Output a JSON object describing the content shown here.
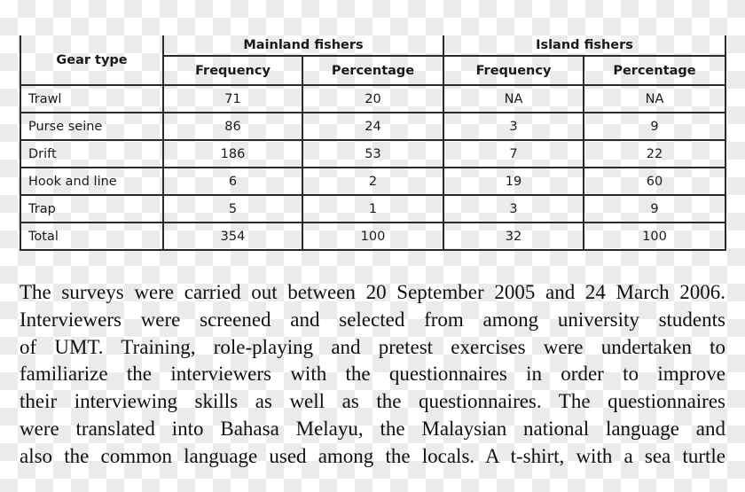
{
  "table": {
    "header": {
      "gear_type": "Gear type",
      "group_mainland": "Mainland fishers",
      "group_island": "Island fishers",
      "frequency": "Frequency",
      "percentage": "Percentage"
    },
    "rows": [
      {
        "gear": "Trawl",
        "m_freq": "71",
        "m_pct": "20",
        "i_freq": "NA",
        "i_pct": "NA"
      },
      {
        "gear": "Purse seine",
        "m_freq": "86",
        "m_pct": "24",
        "i_freq": "3",
        "i_pct": "9"
      },
      {
        "gear": "Drift",
        "m_freq": "186",
        "m_pct": "53",
        "i_freq": "7",
        "i_pct": "22"
      },
      {
        "gear": "Hook and line",
        "m_freq": "6",
        "m_pct": "2",
        "i_freq": "19",
        "i_pct": "60"
      },
      {
        "gear": "Trap",
        "m_freq": "5",
        "m_pct": "1",
        "i_freq": "3",
        "i_pct": "9"
      },
      {
        "gear": "Total",
        "m_freq": "354",
        "m_pct": "100",
        "i_freq": "32",
        "i_pct": "100"
      }
    ]
  },
  "paragraph": {
    "lines": [
      "The surveys were carried out between 20 September 2005 and 24 March 2006.",
      "Interviewers were screened and selected from among university students",
      "of UMT. Training, role-playing and pretest exercises were undertaken to",
      "familiarize the interviewers with the questionnaires in order to improve",
      "their interviewing skills as well as the questionnaires. The questionnaires",
      "were translated into Bahasa Melayu, the Malaysian national language and",
      "also the common language used among the locals. A t-shirt, with a sea turtle"
    ]
  }
}
